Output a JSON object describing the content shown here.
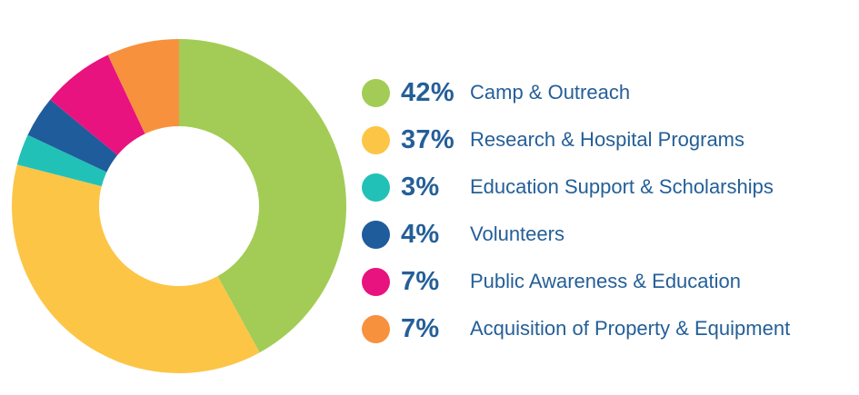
{
  "chart_data": {
    "type": "pie",
    "style": "donut",
    "legend_position": "right",
    "slices": [
      {
        "label": "Camp & Outreach",
        "value": 42,
        "value_label": "42%",
        "color": "#a2cc55"
      },
      {
        "label": "Research & Hospital Programs",
        "value": 37,
        "value_label": "37%",
        "color": "#fcc546"
      },
      {
        "label": "Education Support & Scholarships",
        "value": 3,
        "value_label": "3%",
        "color": "#22c1b7"
      },
      {
        "label": "Volunteers",
        "value": 4,
        "value_label": "4%",
        "color": "#1f5c9c"
      },
      {
        "label": "Public Awareness & Education",
        "value": 7,
        "value_label": "7%",
        "color": "#e8137e"
      },
      {
        "label": "Acquisition of Property & Equipment",
        "value": 7,
        "value_label": "7%",
        "color": "#f7913e"
      }
    ]
  }
}
